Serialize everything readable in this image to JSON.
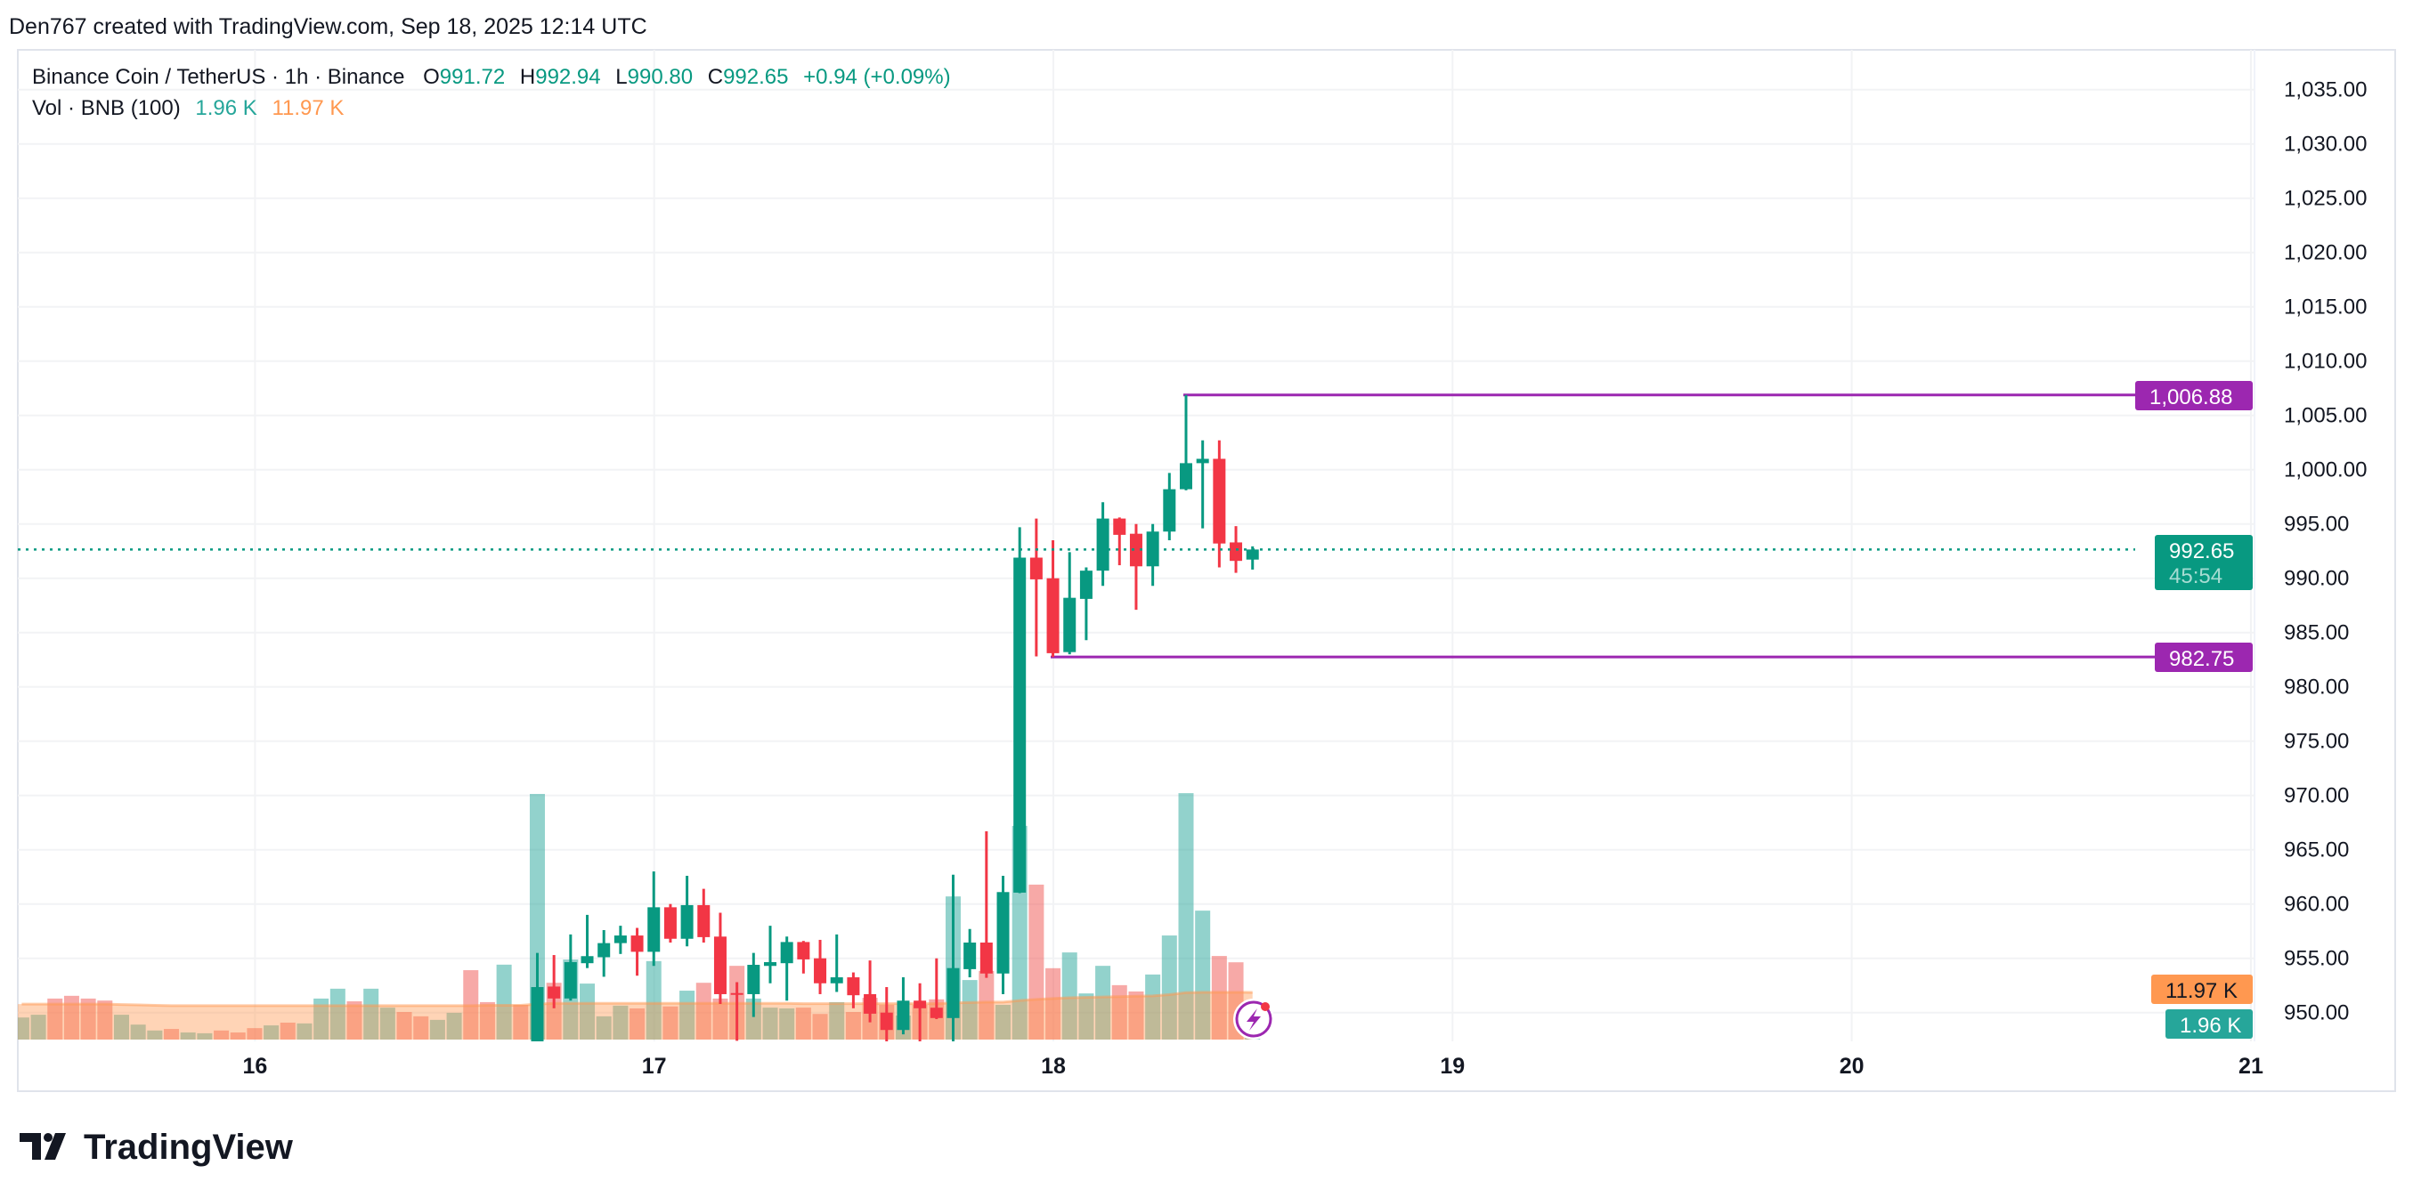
{
  "header": {
    "attribution": "Den767 created with TradingView.com, Sep 18, 2025 12:14 UTC"
  },
  "legend": {
    "symbol": "Binance Coin / TetherUS · 1h · Binance",
    "o_label": "O",
    "o_value": "991.72",
    "h_label": "H",
    "h_value": "992.94",
    "l_label": "L",
    "l_value": "990.80",
    "c_label": "C",
    "c_value": "992.65",
    "change": "+0.94 (+0.09%)",
    "vol_label": "Vol · BNB (100)",
    "vol_value": "1.96 K",
    "vol_ma_value": "11.97 K"
  },
  "price_axis": {
    "ticks": [
      "1,035.00",
      "1,030.00",
      "1,025.00",
      "1,020.00",
      "1,015.00",
      "1,010.00",
      "1,005.00",
      "1,000.00",
      "995.00",
      "990.00",
      "985.00",
      "980.00",
      "975.00",
      "970.00",
      "965.00",
      "960.00",
      "955.00",
      "950.00"
    ],
    "tick_values": [
      1035,
      1030,
      1025,
      1020,
      1015,
      1010,
      1005,
      1000,
      995,
      990,
      985,
      980,
      975,
      970,
      965,
      960,
      955,
      950
    ]
  },
  "time_axis": {
    "days": [
      "16",
      "17",
      "18",
      "19",
      "20",
      "21"
    ]
  },
  "badges": {
    "high_line": "1,006.88",
    "low_line": "982.75",
    "last_price": "992.65",
    "countdown": "45:54",
    "vol_ma": "11.97 K",
    "vol": "1.96 K"
  },
  "footer": {
    "logo": "TradingView"
  },
  "colors": {
    "up": "#089981",
    "down": "#f23645",
    "line": "#9c27b0",
    "vol_up": "#26a69a",
    "vol_down": "#ef5350",
    "ma": "#ff9850"
  },
  "icons": {
    "alert": "lightning-icon",
    "logo": "tradingview-logo"
  },
  "chart_data": {
    "type": "candlestick",
    "interval": "1h",
    "first_volume_bar": "2025-09-15 10:00",
    "first_candle": "2025-09-17 17:00",
    "ylim": [
      948,
      1038
    ],
    "xlim": [
      "2025-09-15 09:00",
      "2025-09-21 04:00"
    ],
    "grid": true,
    "hlines": [
      {
        "value": 1006.88,
        "from": "2025-09-18 08:00"
      },
      {
        "value": 982.75,
        "from": "2025-09-18 00:00"
      }
    ],
    "last_price": 992.65,
    "candles": [
      [
        946.8,
        955.5,
        946.0,
        952.35
      ],
      [
        952.4,
        955.3,
        950.4,
        951.3
      ],
      [
        951.3,
        957.2,
        951.1,
        954.65
      ],
      [
        954.55,
        959.0,
        954.1,
        955.2
      ],
      [
        955.1,
        957.6,
        953.3,
        956.4
      ],
      [
        956.4,
        958.0,
        955.4,
        957.1
      ],
      [
        957.1,
        957.8,
        953.4,
        955.6
      ],
      [
        955.6,
        963.0,
        954.3,
        959.7
      ],
      [
        959.7,
        960.0,
        956.45,
        956.8
      ],
      [
        956.8,
        962.6,
        956.1,
        959.9
      ],
      [
        959.9,
        961.4,
        956.45,
        956.95
      ],
      [
        957.0,
        959.2,
        950.8,
        951.7
      ],
      [
        951.8,
        952.8,
        947.4,
        951.75
      ],
      [
        951.7,
        955.5,
        949.6,
        954.4
      ],
      [
        954.3,
        958.0,
        952.7,
        954.65
      ],
      [
        954.55,
        957.0,
        951.1,
        956.5
      ],
      [
        956.5,
        956.6,
        953.6,
        954.9
      ],
      [
        955.0,
        956.7,
        951.7,
        952.7
      ],
      [
        952.7,
        957.2,
        951.9,
        953.25
      ],
      [
        953.25,
        953.7,
        950.4,
        951.6
      ],
      [
        951.7,
        954.8,
        949.1,
        949.9
      ],
      [
        950.0,
        952.35,
        947.2,
        948.4
      ],
      [
        948.4,
        953.25,
        948.0,
        951.1
      ],
      [
        951.1,
        952.7,
        947.2,
        950.4
      ],
      [
        950.45,
        955.0,
        949.4,
        949.5
      ],
      [
        949.5,
        962.7,
        947.2,
        954.1
      ],
      [
        954.0,
        957.7,
        953.25,
        956.45
      ],
      [
        956.45,
        966.7,
        953.2,
        953.6
      ],
      [
        953.6,
        962.6,
        951.7,
        961.1
      ],
      [
        961.05,
        994.7,
        961.0,
        991.9
      ],
      [
        991.9,
        995.5,
        982.8,
        989.9
      ],
      [
        990.0,
        993.5,
        982.75,
        983.1
      ],
      [
        983.2,
        992.4,
        983.0,
        988.2
      ],
      [
        988.1,
        991.0,
        984.3,
        990.7
      ],
      [
        990.7,
        997.0,
        989.3,
        995.5
      ],
      [
        995.5,
        995.6,
        991.2,
        994.0
      ],
      [
        994.1,
        995.0,
        987.1,
        991.1
      ],
      [
        991.1,
        995.0,
        989.3,
        994.3
      ],
      [
        994.3,
        999.7,
        993.5,
        998.2
      ],
      [
        998.2,
        1006.88,
        998.1,
        1000.6
      ],
      [
        1000.6,
        1002.7,
        994.6,
        1001.0
      ],
      [
        1001.0,
        1002.7,
        991.0,
        993.2
      ],
      [
        993.3,
        994.8,
        990.5,
        991.6
      ],
      [
        991.72,
        992.94,
        990.8,
        992.65
      ]
    ],
    "volume_k": [
      [
        5.6,
        "up"
      ],
      [
        6.3,
        "up"
      ],
      [
        10.4,
        "down"
      ],
      [
        11.1,
        "down"
      ],
      [
        10.4,
        "down"
      ],
      [
        9.9,
        "down"
      ],
      [
        6.3,
        "up"
      ],
      [
        3.8,
        "up"
      ],
      [
        2.3,
        "up"
      ],
      [
        2.7,
        "down"
      ],
      [
        1.8,
        "up"
      ],
      [
        1.6,
        "up"
      ],
      [
        2.3,
        "down"
      ],
      [
        1.8,
        "down"
      ],
      [
        2.9,
        "down"
      ],
      [
        3.6,
        "up"
      ],
      [
        4.3,
        "down"
      ],
      [
        4.1,
        "up"
      ],
      [
        10.4,
        "up"
      ],
      [
        12.9,
        "up"
      ],
      [
        9.7,
        "down"
      ],
      [
        12.9,
        "up"
      ],
      [
        8.1,
        "up"
      ],
      [
        7.0,
        "down"
      ],
      [
        5.9,
        "down"
      ],
      [
        5.0,
        "up"
      ],
      [
        6.8,
        "up"
      ],
      [
        17.6,
        "down"
      ],
      [
        9.5,
        "down"
      ],
      [
        19.0,
        "up"
      ],
      [
        8.8,
        "down"
      ],
      [
        62.3,
        "up"
      ],
      [
        14.4,
        "down"
      ],
      [
        20.3,
        "up"
      ],
      [
        14.2,
        "up"
      ],
      [
        5.9,
        "up"
      ],
      [
        8.6,
        "up"
      ],
      [
        7.9,
        "down"
      ],
      [
        19.9,
        "up"
      ],
      [
        8.4,
        "down"
      ],
      [
        12.4,
        "up"
      ],
      [
        14.4,
        "down"
      ],
      [
        10.4,
        "down"
      ],
      [
        18.7,
        "down"
      ],
      [
        10.4,
        "up"
      ],
      [
        8.1,
        "up"
      ],
      [
        7.9,
        "up"
      ],
      [
        8.1,
        "down"
      ],
      [
        6.5,
        "down"
      ],
      [
        9.5,
        "up"
      ],
      [
        7.0,
        "down"
      ],
      [
        10.6,
        "down"
      ],
      [
        8.8,
        "down"
      ],
      [
        6.1,
        "up"
      ],
      [
        8.8,
        "down"
      ],
      [
        10.2,
        "down"
      ],
      [
        36.3,
        "up"
      ],
      [
        15.1,
        "up"
      ],
      [
        17.4,
        "down"
      ],
      [
        8.8,
        "up"
      ],
      [
        54.2,
        "up"
      ],
      [
        39.3,
        "down"
      ],
      [
        18.1,
        "down"
      ],
      [
        22.1,
        "up"
      ],
      [
        11.7,
        "up"
      ],
      [
        18.7,
        "up"
      ],
      [
        13.8,
        "down"
      ],
      [
        12.2,
        "down"
      ],
      [
        16.5,
        "up"
      ],
      [
        26.4,
        "up"
      ],
      [
        62.5,
        "up"
      ],
      [
        32.7,
        "up"
      ],
      [
        21.2,
        "down"
      ],
      [
        19.6,
        "down"
      ],
      [
        1.96,
        "up"
      ]
    ],
    "volume_ma_k": [
      9.0,
      9.0,
      9.0,
      9.0,
      9.0,
      9.0,
      8.9,
      8.8,
      8.7,
      8.6,
      8.6,
      8.6,
      8.6,
      8.6,
      8.6,
      8.6,
      8.6,
      8.6,
      8.6,
      8.6,
      8.6,
      8.6,
      8.6,
      8.6,
      8.6,
      8.6,
      8.6,
      8.6,
      8.7,
      8.7,
      8.7,
      9.0,
      9.2,
      9.2,
      9.2,
      9.2,
      9.2,
      9.2,
      9.2,
      9.2,
      9.2,
      9.2,
      9.2,
      9.2,
      9.2,
      9.2,
      9.2,
      9.1,
      9.1,
      9.1,
      9.1,
      9.1,
      9.1,
      9.1,
      9.1,
      9.1,
      9.3,
      9.4,
      9.5,
      9.5,
      9.9,
      10.2,
      10.4,
      10.6,
      10.7,
      10.8,
      10.9,
      11.0,
      11.1,
      11.4,
      11.9,
      12.0,
      12.0,
      12.0,
      11.97
    ]
  }
}
